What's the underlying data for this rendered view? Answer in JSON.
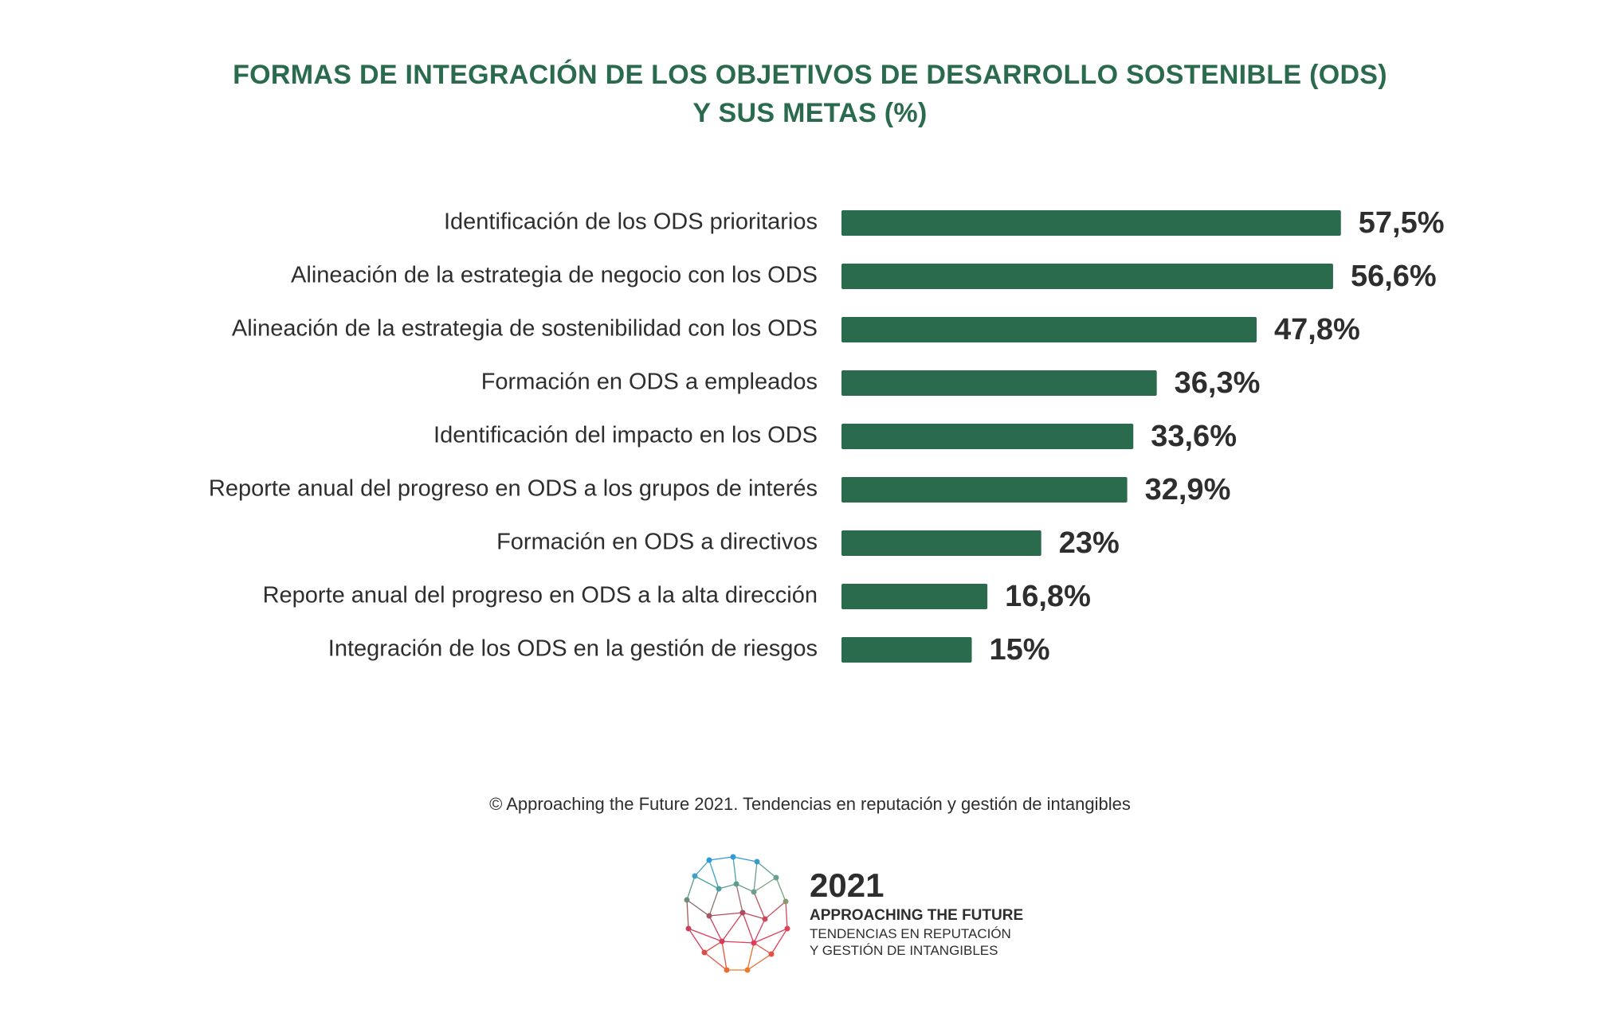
{
  "chart_data": {
    "type": "bar",
    "orientation": "horizontal",
    "title": "FORMAS DE INTEGRACIÓN DE LOS OBJETIVOS DE DESARROLLO SOSTENIBLE (ODS) Y SUS METAS (%)",
    "title_lines": [
      "FORMAS DE INTEGRACIÓN DE LOS OBJETIVOS DE DESARROLLO SOSTENIBLE (ODS)",
      "Y SUS METAS (%)"
    ],
    "categories": [
      "Identificación de los ODS prioritarios",
      "Alineación de la estrategia de negocio con los ODS",
      "Alineación de la estrategia de sostenibilidad con los ODS",
      "Formación en ODS a empleados",
      "Identificación del impacto en los ODS",
      "Reporte anual del progreso en ODS a los grupos de interés",
      "Formación en ODS a directivos",
      "Reporte anual del progreso en ODS a la alta dirección",
      "Integración de los ODS en la gestión de riesgos"
    ],
    "values": [
      57.5,
      56.6,
      47.8,
      36.3,
      33.6,
      32.9,
      23,
      16.8,
      15
    ],
    "data_labels": [
      "57,5%",
      "56,6%",
      "47,8%",
      "36,3%",
      "33,6%",
      "32,9%",
      "23%",
      "16,8%",
      "15%"
    ],
    "bar_color": "#2b6b4d",
    "grid": false,
    "legend": "none"
  },
  "source": "© Approaching the Future 2021. Tendencias en reputación y gestión de intangibles",
  "logo": {
    "year": "2021",
    "name": "APPROACHING THE FUTURE",
    "subtitle_lines": [
      "TENDENCIAS EN REPUTACIÓN",
      "Y GESTIÓN DE INTANGIBLES"
    ]
  },
  "title_color": "#2b6b4d"
}
